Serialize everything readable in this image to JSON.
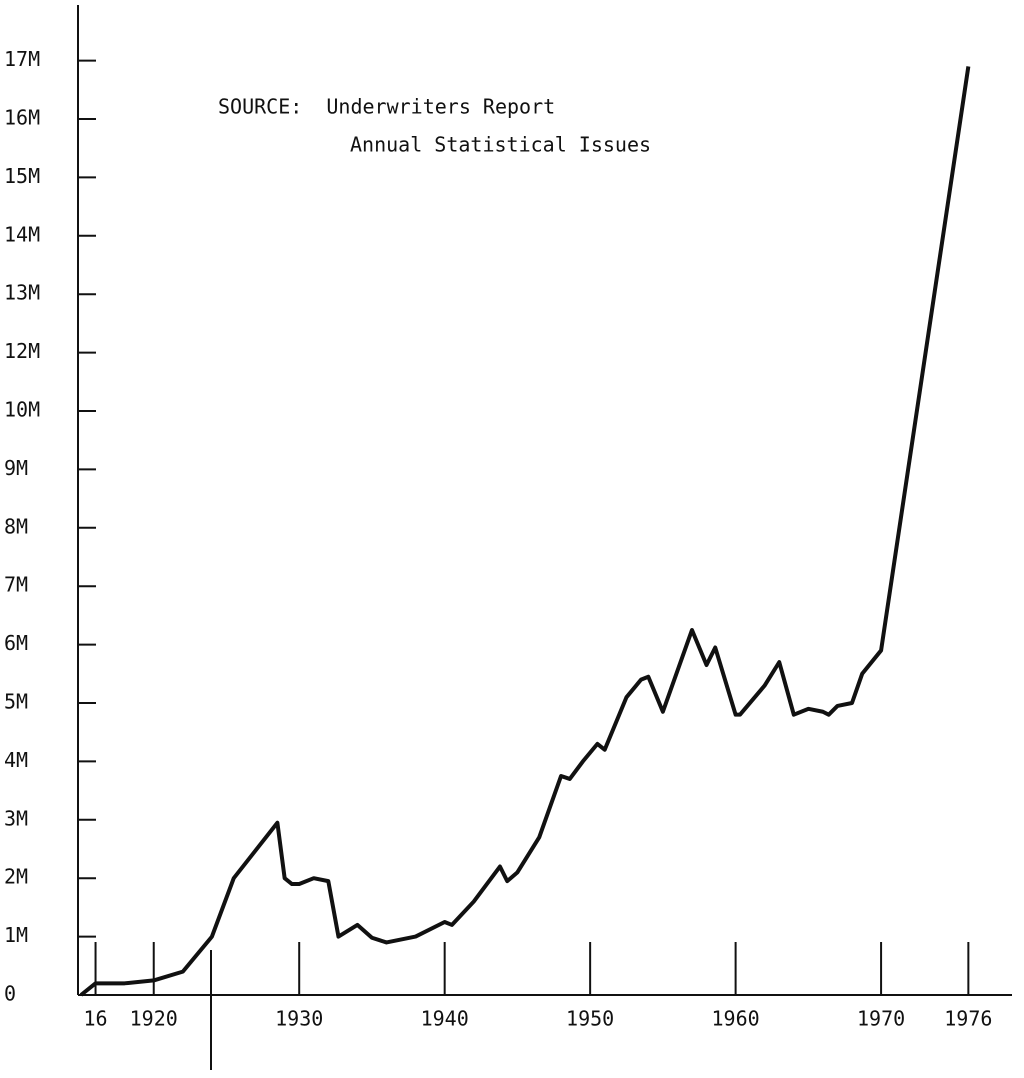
{
  "chart_data": {
    "type": "line",
    "annotations": [
      "SOURCE:  Underwriters Report",
      "Annual Statistical Issues"
    ],
    "x": [
      1915,
      1916,
      1918,
      1920,
      1922,
      1924,
      1925.5,
      1928.5,
      1929,
      1929.5,
      1930,
      1931,
      1932,
      1932.7,
      1934,
      1935,
      1936,
      1938,
      1940,
      1940.5,
      1942,
      1943.8,
      1944.3,
      1945,
      1946.5,
      1948,
      1948.6,
      1949.5,
      1950.5,
      1951,
      1952.5,
      1953.5,
      1954,
      1955,
      1957,
      1958,
      1958.6,
      1960,
      1960.3,
      1962,
      1963,
      1964,
      1965,
      1966,
      1966.4,
      1967,
      1968,
      1968.7,
      1970,
      1976
    ],
    "series": [
      {
        "color": "#111111",
        "values": [
          0,
          0.2,
          0.2,
          0.25,
          0.4,
          1.0,
          2.0,
          2.95,
          2.0,
          1.9,
          1.9,
          2.0,
          1.95,
          1.0,
          1.2,
          0.98,
          0.9,
          1.0,
          1.25,
          1.2,
          1.6,
          2.2,
          1.95,
          2.1,
          2.7,
          3.75,
          3.7,
          4.0,
          4.3,
          4.2,
          5.1,
          5.4,
          5.45,
          4.85,
          6.25,
          5.65,
          5.95,
          4.8,
          4.8,
          5.3,
          5.7,
          4.8,
          4.9,
          4.85,
          4.8,
          4.95,
          5.0,
          5.5,
          5.9,
          16.9
        ]
      }
    ],
    "xlim": [
      1915,
      1979
    ],
    "xticks": [
      {
        "value": 1916,
        "label": "16"
      },
      1920,
      1930,
      1940,
      1950,
      1960,
      1970,
      1976
    ],
    "ylim": [
      0,
      17
    ],
    "yticks": [
      0,
      {
        "value": 1,
        "label": "1M"
      },
      {
        "value": 2,
        "label": "2M"
      },
      {
        "value": 3,
        "label": "3M"
      },
      {
        "value": 4,
        "label": "4M"
      },
      {
        "value": 5,
        "label": "5M"
      },
      {
        "value": 6,
        "label": "6M"
      },
      {
        "value": 7,
        "label": "7M"
      },
      {
        "value": 8,
        "label": "8M"
      },
      {
        "value": 9,
        "label": "9M"
      },
      {
        "value": 10,
        "label": "10M"
      },
      {
        "value": 12,
        "label": "12M"
      },
      {
        "value": 13,
        "label": "13M"
      },
      {
        "value": 14,
        "label": "14M"
      },
      {
        "value": 15,
        "label": "15M"
      },
      {
        "value": 16,
        "label": "16M"
      },
      {
        "value": 17,
        "label": "17M"
      }
    ]
  }
}
